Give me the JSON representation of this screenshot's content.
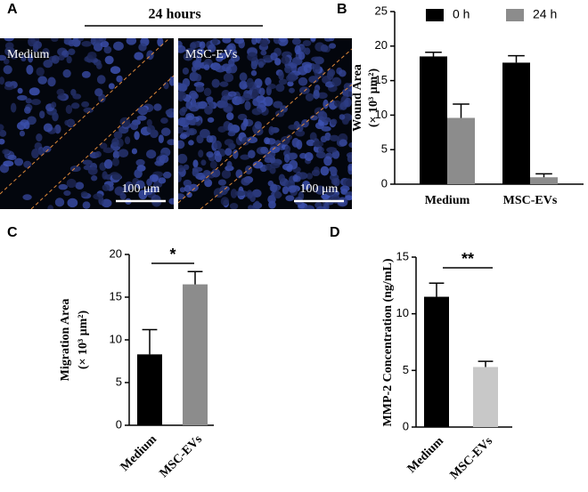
{
  "panel_a": {
    "label": "A",
    "title": "24 hours",
    "images": [
      {
        "label": "Medium",
        "scale_bar": "100 μm"
      },
      {
        "label": "MSC-EVs",
        "scale_bar": "100 μm"
      }
    ]
  },
  "chart_data": [
    {
      "type": "bar",
      "panel": "B",
      "ylabel": [
        "Wound Area",
        "(× 10³ μm²)"
      ],
      "categories": [
        "Medium",
        "MSC-EVs"
      ],
      "series": [
        {
          "name": "0 h",
          "color": "#000000",
          "values": [
            18.5,
            17.6
          ],
          "errors": [
            0.6,
            1.0
          ]
        },
        {
          "name": "24 h",
          "color": "#8c8c8c",
          "values": [
            9.6,
            1.0
          ],
          "errors": [
            2.0,
            0.5
          ]
        }
      ],
      "ylim": [
        0,
        25
      ],
      "yticks": [
        0,
        5,
        10,
        15,
        20,
        25
      ],
      "legend": "top"
    },
    {
      "type": "bar",
      "panel": "C",
      "ylabel": [
        "Migration Area",
        "(× 10³ μm²)"
      ],
      "categories": [
        "Medium",
        "MSC-EVs"
      ],
      "values": [
        8.3,
        16.5
      ],
      "errors": [
        2.9,
        1.5
      ],
      "colors": [
        "#000000",
        "#8c8c8c"
      ],
      "significance": "*",
      "ylim": [
        0,
        20
      ],
      "yticks": [
        0,
        5,
        10,
        15,
        20
      ]
    },
    {
      "type": "bar",
      "panel": "D",
      "ylabel": [
        "MMP-2 Concentration (ng/mL)"
      ],
      "categories": [
        "Medium",
        "MSC-EVs"
      ],
      "values": [
        11.5,
        5.3
      ],
      "errors": [
        1.2,
        0.5
      ],
      "colors": [
        "#000000",
        "#c8c8c8"
      ],
      "significance": "**",
      "ylim": [
        0,
        15
      ],
      "yticks": [
        0,
        5,
        10,
        15
      ]
    }
  ]
}
